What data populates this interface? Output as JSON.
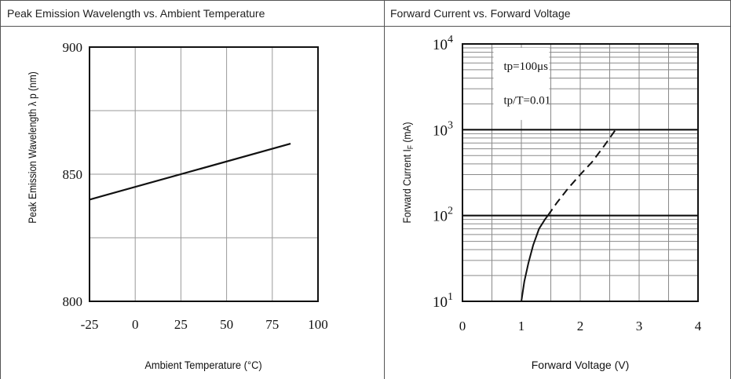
{
  "charts": {
    "left_title": "Peak Emission Wavelength vs. Ambient Temperature",
    "right_title": "Forward Current vs. Forward Voltage"
  },
  "chart_data": [
    {
      "type": "line",
      "title": "Peak Emission Wavelength vs. Ambient Temperature",
      "xlabel": "Ambient Temperature (°C)",
      "ylabel": "Peak Emission Wavelength λ p (nm)",
      "xlim": [
        -25,
        100
      ],
      "ylim": [
        800,
        900
      ],
      "x_ticks": [
        "-25",
        "0",
        "25",
        "50",
        "75",
        "100"
      ],
      "y_ticks": [
        "800",
        "850",
        "900"
      ],
      "grid": true,
      "series": [
        {
          "x": [
            -25,
            85
          ],
          "y": [
            840,
            862
          ]
        }
      ]
    },
    {
      "type": "line",
      "title": "Forward Current vs. Forward Voltage",
      "xlabel": "Forward Voltage (V)",
      "ylabel": "Forward Current IF (mA)",
      "ylabel_main": "Forward Current I",
      "ylabel_sub": "F",
      "ylabel_unit": " (mA)",
      "xlim": [
        0,
        4
      ],
      "ylim": [
        10,
        10000
      ],
      "y_scale": "log",
      "x_ticks": [
        "0",
        "1",
        "2",
        "3",
        "4"
      ],
      "y_ticks": [
        {
          "base": "10",
          "exp": "1"
        },
        {
          "base": "10",
          "exp": "2"
        },
        {
          "base": "10",
          "exp": "3"
        },
        {
          "base": "10",
          "exp": "4"
        }
      ],
      "grid": true,
      "annotations": [
        "tp=100μs",
        "tp/T=0.01"
      ],
      "series": [
        {
          "style": "solid",
          "x": [
            1.0,
            1.05,
            1.12,
            1.2,
            1.3,
            1.4,
            1.45
          ],
          "y": [
            10,
            17,
            28,
            45,
            70,
            90,
            100
          ]
        },
        {
          "style": "dashed",
          "x": [
            1.45,
            1.6,
            1.8,
            2.0,
            2.2,
            2.4,
            2.6
          ],
          "y": [
            100,
            140,
            210,
            300,
            420,
            640,
            1000
          ]
        }
      ]
    }
  ]
}
